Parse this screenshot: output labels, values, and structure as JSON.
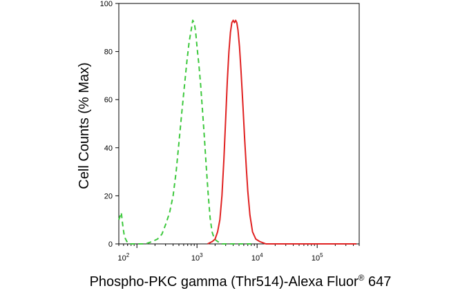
{
  "chart_data": {
    "type": "line",
    "xlabel_main": "Phospho-PKC gamma (Thr514)-Alexa Fluor",
    "xlabel_reg": "®",
    "xlabel_tail": " 647",
    "ylabel": "Cell Counts (% Max)",
    "x_scale": "log",
    "xlim": [
      50,
      500000
    ],
    "ylim": [
      0,
      100
    ],
    "y_ticks": [
      "0",
      "20",
      "40",
      "60",
      "80",
      "100"
    ],
    "x_ticks": [
      {
        "base": "10",
        "exp": "2",
        "value": 100
      },
      {
        "base": "10",
        "exp": "3",
        "value": 1000
      },
      {
        "base": "10",
        "exp": "4",
        "value": 10000
      },
      {
        "base": "10",
        "exp": "5",
        "value": 100000
      }
    ],
    "x_ticks_first_label": {
      "base": "10",
      "exp": "2",
      "value": 60
    },
    "grid": false,
    "legend": "none",
    "series": [
      {
        "style": "dashed",
        "color": "#3cc83c",
        "points": [
          [
            50,
            10
          ],
          [
            55,
            13
          ],
          [
            58,
            8
          ],
          [
            62,
            3
          ],
          [
            68,
            1
          ],
          [
            75,
            0
          ],
          [
            90,
            0
          ],
          [
            110,
            0
          ],
          [
            140,
            0
          ],
          [
            180,
            1
          ],
          [
            220,
            2
          ],
          [
            260,
            4
          ],
          [
            300,
            8
          ],
          [
            350,
            13
          ],
          [
            400,
            20
          ],
          [
            450,
            30
          ],
          [
            500,
            42
          ],
          [
            560,
            55
          ],
          [
            620,
            66
          ],
          [
            680,
            76
          ],
          [
            740,
            84
          ],
          [
            800,
            89
          ],
          [
            850,
            93
          ],
          [
            900,
            92
          ],
          [
            950,
            88
          ],
          [
            1000,
            82
          ],
          [
            1080,
            74
          ],
          [
            1150,
            66
          ],
          [
            1230,
            56
          ],
          [
            1320,
            45
          ],
          [
            1420,
            33
          ],
          [
            1530,
            21
          ],
          [
            1650,
            11
          ],
          [
            1780,
            5
          ],
          [
            1950,
            2
          ],
          [
            2200,
            1
          ],
          [
            2600,
            0
          ],
          [
            4000,
            0
          ],
          [
            8000,
            0
          ]
        ]
      },
      {
        "style": "solid",
        "color": "#e02020",
        "points": [
          [
            1500,
            0
          ],
          [
            1800,
            1
          ],
          [
            2000,
            2
          ],
          [
            2200,
            5
          ],
          [
            2400,
            10
          ],
          [
            2600,
            20
          ],
          [
            2800,
            35
          ],
          [
            3000,
            52
          ],
          [
            3200,
            68
          ],
          [
            3400,
            80
          ],
          [
            3600,
            88
          ],
          [
            3800,
            92
          ],
          [
            4000,
            93
          ],
          [
            4200,
            92
          ],
          [
            4400,
            93
          ],
          [
            4600,
            92
          ],
          [
            4800,
            89
          ],
          [
            5100,
            82
          ],
          [
            5400,
            72
          ],
          [
            5800,
            58
          ],
          [
            6200,
            44
          ],
          [
            6600,
            32
          ],
          [
            7000,
            22
          ],
          [
            7600,
            12
          ],
          [
            8400,
            5
          ],
          [
            9500,
            2
          ],
          [
            11000,
            1
          ],
          [
            14000,
            0
          ],
          [
            30000,
            0
          ],
          [
            100000,
            0
          ],
          [
            450000,
            0
          ]
        ]
      }
    ]
  }
}
